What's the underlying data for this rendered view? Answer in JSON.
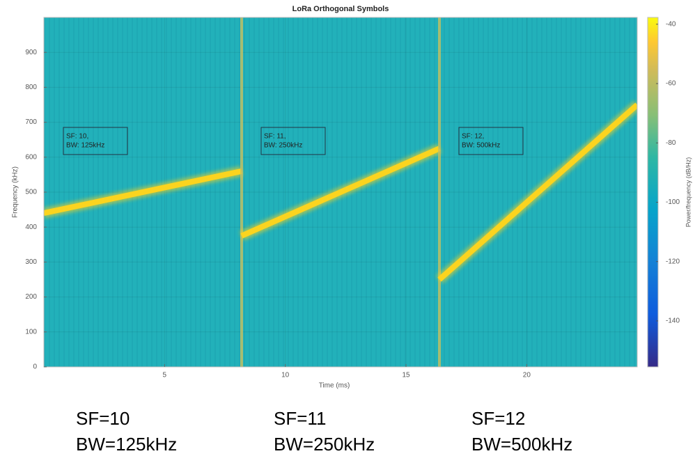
{
  "chart_data": {
    "type": "spectrogram",
    "title": "LoRa Orthogonal Symbols",
    "x_label": "Time (ms)",
    "y_label": "Frequency (kHz)",
    "colorbar_label": "Power/frequency (dB/Hz)",
    "xlim": [
      0,
      24.576
    ],
    "xticks": [
      5,
      10,
      15,
      20
    ],
    "ylim": [
      0,
      1000
    ],
    "yticks": [
      0,
      100,
      200,
      300,
      400,
      500,
      600,
      700,
      800,
      900
    ],
    "clim": [
      -155.5,
      -37.7
    ],
    "cticks": [
      -140,
      -120,
      -100,
      -80,
      -60,
      -40
    ],
    "grid": true,
    "background_color": "#22b1ba",
    "series": [
      {
        "x": [
          0,
          8.192
        ],
        "values": [
          440,
          560
        ],
        "color": "#fbd41f"
      },
      {
        "x": [
          8.192,
          16.384
        ],
        "values": [
          375,
          625
        ],
        "color": "#fbd41f"
      },
      {
        "x": [
          16.384,
          24.576
        ],
        "values": [
          250,
          750
        ],
        "color": "#fbd41f"
      }
    ],
    "annotations": [
      {
        "lines": [
          "SF: 10,",
          "BW: 125kHz"
        ]
      },
      {
        "lines": [
          "SF: 11,",
          "BW: 250kHz"
        ]
      },
      {
        "lines": [
          "SF: 12,",
          "BW: 500kHz"
        ]
      }
    ],
    "captions": [
      [
        "SF=10",
        "BW=125kHz"
      ],
      [
        "SF=11",
        "BW=250kHz"
      ],
      [
        "SF=12",
        "BW=500kHz"
      ]
    ]
  }
}
